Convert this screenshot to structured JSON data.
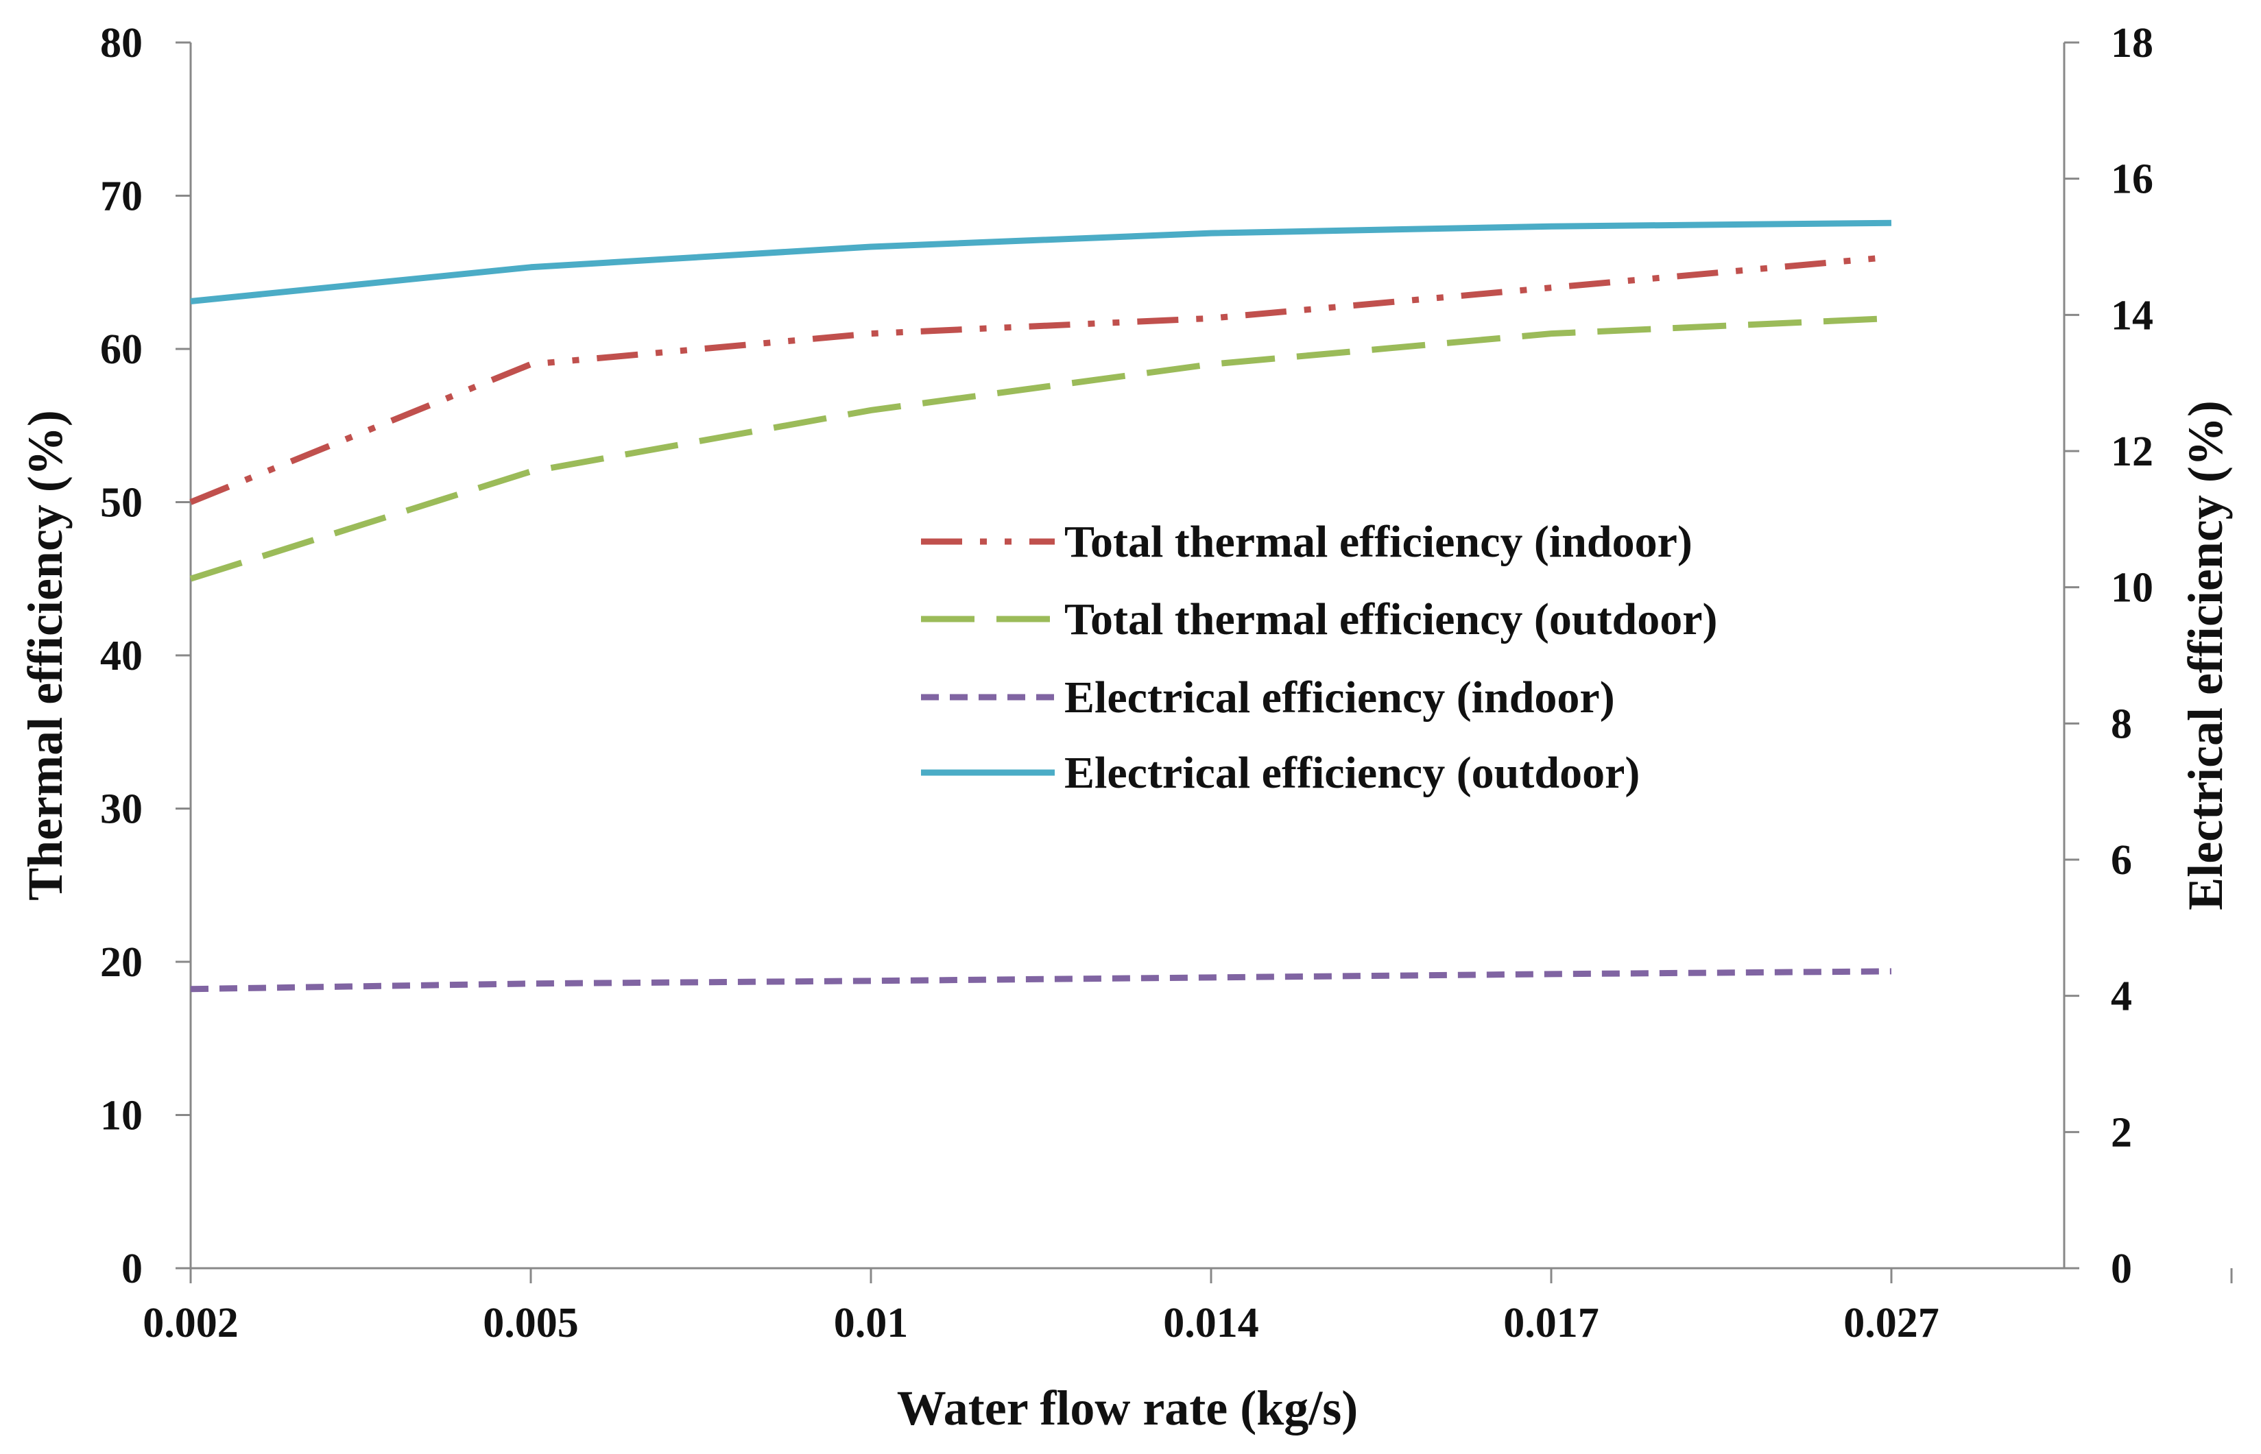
{
  "chart_data": {
    "type": "line",
    "title": "",
    "xlabel": "Water flow rate (kg/s)",
    "ylabel": "Thermal  efficiency (%)",
    "y2label": "Electrical efficiency (%)",
    "categories": [
      "0.002",
      "0.005",
      "0.01",
      "0.014",
      "0.017",
      "0.027"
    ],
    "ylim": [
      0,
      80
    ],
    "yticks": [
      "0",
      "10",
      "20",
      "30",
      "40",
      "50",
      "60",
      "70",
      "80"
    ],
    "y2lim": [
      0,
      18
    ],
    "y2ticks": [
      "0",
      "2",
      "4",
      "6",
      "8",
      "10",
      "12",
      "14",
      "16",
      "18"
    ],
    "grid": false,
    "legend_position": "center-right",
    "series": [
      {
        "name": "Total thermal efficiency (indoor)",
        "axis": "left",
        "values": [
          50,
          59,
          61,
          62,
          64,
          66
        ],
        "color": "#C0504D",
        "style": "dash-dot-dot"
      },
      {
        "name": "Total thermal efficiency (outdoor)",
        "axis": "left",
        "values": [
          45,
          52,
          56,
          59,
          61,
          62
        ],
        "color": "#9BBB59",
        "style": "long-dash"
      },
      {
        "name": "Electrical efficiency (indoor)",
        "axis": "right",
        "values": [
          4.1,
          4.18,
          4.22,
          4.27,
          4.32,
          4.36
        ],
        "color": "#8064A2",
        "style": "short-dash"
      },
      {
        "name": "Electrical efficiency (outdoor)",
        "axis": "right",
        "values": [
          14.2,
          14.7,
          15.0,
          15.2,
          15.3,
          15.35
        ],
        "color": "#4BACC6",
        "style": "solid"
      }
    ]
  }
}
